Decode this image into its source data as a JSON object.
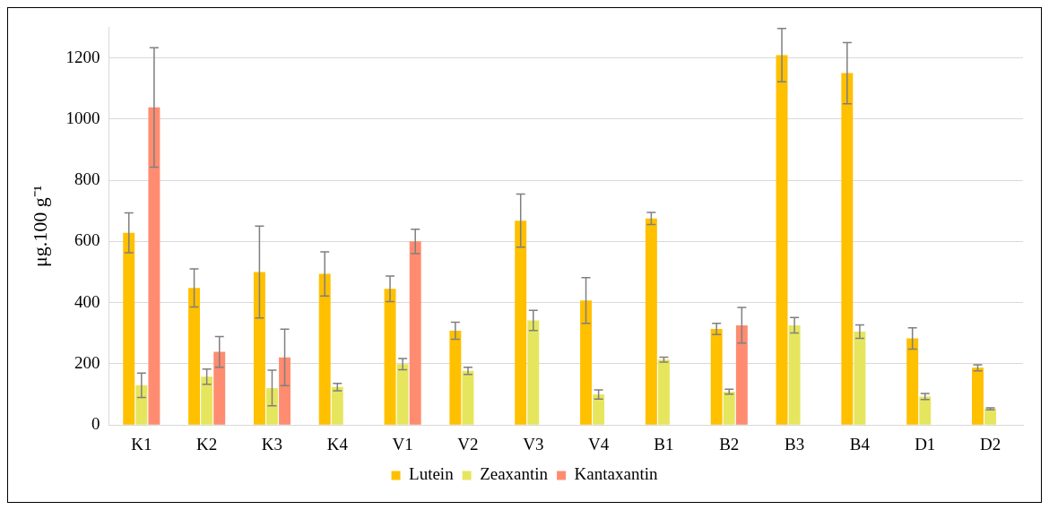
{
  "chart_data": {
    "type": "bar",
    "ylabel": "μg.100 g⁻¹",
    "categories": [
      "K1",
      "K2",
      "K3",
      "K4",
      "V1",
      "V2",
      "V3",
      "V4",
      "B1",
      "B2",
      "B3",
      "B4",
      "D1",
      "D2"
    ],
    "series": [
      {
        "name": "Lutein",
        "color": "#ffc000",
        "values": [
          628,
          448,
          500,
          494,
          445,
          308,
          668,
          407,
          675,
          314,
          1209,
          1150,
          283,
          187
        ],
        "errors": [
          65,
          62,
          150,
          72,
          42,
          28,
          87,
          75,
          20,
          18,
          87,
          100,
          35,
          10
        ]
      },
      {
        "name": "Zeaxantin",
        "color": "#e6e65e",
        "values": [
          130,
          158,
          121,
          124,
          199,
          177,
          342,
          100,
          214,
          109,
          326,
          305,
          93,
          53
        ],
        "errors": [
          40,
          25,
          58,
          12,
          18,
          12,
          33,
          15,
          8,
          8,
          25,
          22,
          10,
          3
        ]
      },
      {
        "name": "Kantaxantin",
        "color": "#ff8c70",
        "values": [
          1038,
          239,
          221,
          null,
          600,
          null,
          null,
          null,
          null,
          326,
          null,
          null,
          null,
          null
        ],
        "errors": [
          195,
          50,
          92,
          null,
          40,
          null,
          null,
          null,
          null,
          58,
          null,
          null,
          null,
          null
        ]
      }
    ],
    "ylim": [
      0,
      1300
    ],
    "yticks": [
      0,
      200,
      400,
      600,
      800,
      1000,
      1200
    ],
    "grid": "y",
    "legend": "bottom"
  }
}
